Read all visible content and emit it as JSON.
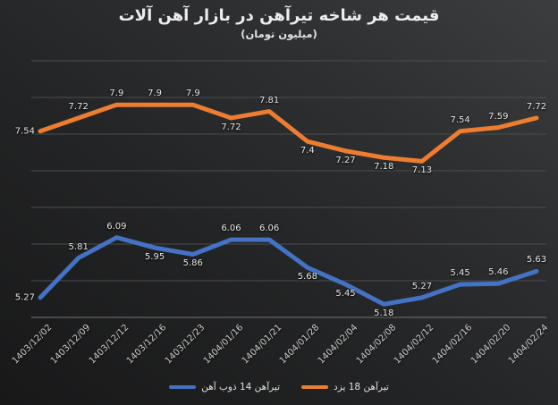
{
  "title": "قیمت هر شاخه تیرآهن در بازار آهن آلات",
  "subtitle": "(میلیون تومان)",
  "chart_data": {
    "type": "line",
    "title": "قیمت هر شاخه تیرآهن در بازار آهن آلات",
    "subtitle": "(میلیون تومان)",
    "categories": [
      "1403/12/02",
      "1403/12/09",
      "1403/12/12",
      "1403/12/16",
      "1403/12/23",
      "1404/01/16",
      "1404/01/21",
      "1404/01/28",
      "1404/02/04",
      "1404/02/08",
      "1404/02/12",
      "1404/02/16",
      "1404/02/20",
      "1404/02/24"
    ],
    "series": [
      {
        "name": "تیرآهن 14 ذوب آهن",
        "color": "#4472C4",
        "values": [
          5.27,
          5.81,
          6.09,
          5.95,
          5.86,
          6.06,
          6.06,
          5.68,
          5.45,
          5.18,
          5.27,
          5.45,
          5.46,
          5.63
        ]
      },
      {
        "name": "تیرآهن 18 یزد",
        "color": "#ED7D31",
        "values": [
          7.54,
          7.72,
          7.9,
          7.9,
          7.9,
          7.72,
          7.81,
          7.4,
          7.27,
          7.18,
          7.13,
          7.54,
          7.59,
          7.72
        ]
      }
    ],
    "ylim": [
      5.0,
      8.5
    ],
    "ytick_step": 0.5,
    "grid": "horizontal",
    "data_labels": true,
    "legend_position": "bottom",
    "gridline_color": "#4b4c4e",
    "axis_line_color": "#737475",
    "background": "dark-gradient"
  }
}
